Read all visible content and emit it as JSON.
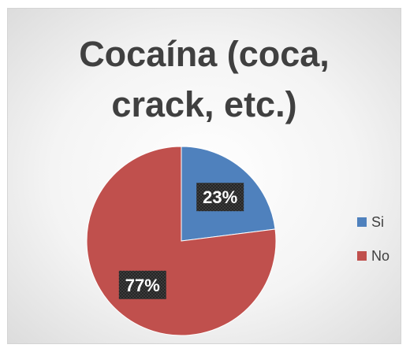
{
  "chart_data": {
    "type": "pie",
    "title": "Cocaína (coca,\ncrack, etc.)",
    "categories": [
      "Si",
      "No"
    ],
    "values": [
      23,
      77
    ],
    "data_labels": [
      "23%",
      "77%"
    ],
    "colors": [
      "#4f81bd",
      "#c0504d"
    ],
    "legend_position": "right"
  }
}
